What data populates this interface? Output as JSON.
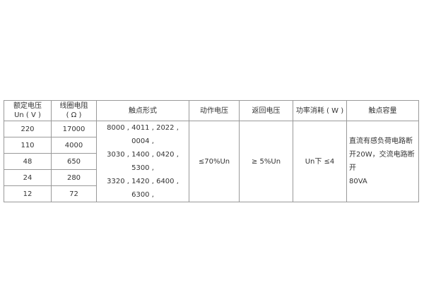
{
  "headers": {
    "rated_voltage": "额定电压",
    "rated_voltage_unit": "Un ( V )",
    "coil_resistance": "线圈电阻",
    "coil_resistance_unit": "( Ω )",
    "contact_form": "触点形式",
    "pickup_voltage": "动作电压",
    "release_voltage": "返回电压",
    "power": "功率消耗 ( W )",
    "contact_capacity": "触点容量"
  },
  "rows": [
    {
      "voltage": "220",
      "resistance": "17000"
    },
    {
      "voltage": "110",
      "resistance": "4000"
    },
    {
      "voltage": "48",
      "resistance": "650"
    },
    {
      "voltage": "24",
      "resistance": "280"
    },
    {
      "voltage": "12",
      "resistance": "72"
    }
  ],
  "contact_forms": [
    "8000 , 4011 , 2022 , 0004 ,",
    "3030 , 1400 , 0420 , 5300 ,",
    "3320 , 1420 , 6400 , 6300 ,"
  ],
  "pickup_voltage": "≤70%Un",
  "release_voltage": "≥ 5%Un",
  "power": "Un下 ≤4",
  "contact_capacity": [
    "直流有感负荷电路断",
    "开20W，交流电路断开",
    "80VA"
  ]
}
